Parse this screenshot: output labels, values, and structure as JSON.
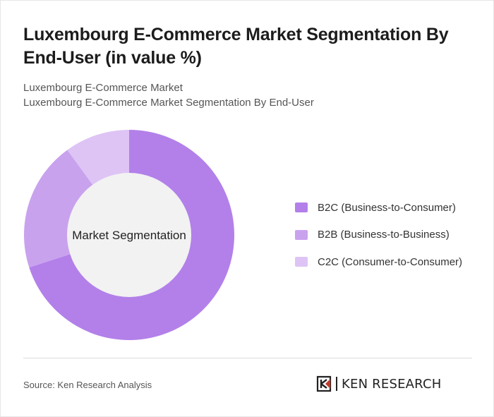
{
  "header": {
    "title": "Luxembourg E-Commerce Market Segmentation By End-User (in value %)",
    "subtitle_line1": "Luxembourg E-Commerce Market",
    "subtitle_line2": "Luxembourg E-Commerce Market Segmentation By End-User"
  },
  "chart_data": {
    "type": "pie",
    "style": "donut",
    "center_label": "Market Segmentation",
    "categories": [
      "B2C (Business-to-Consumer)",
      "B2B (Business-to-Business)",
      "C2C (Consumer-to-Consumer)"
    ],
    "values": [
      70,
      20,
      10
    ],
    "colors": [
      "#b380e9",
      "#c9a2ee",
      "#dec4f5"
    ],
    "legend_position": "right"
  },
  "footer": {
    "source": "Source: Ken Research Analysis",
    "logo_text": "KEN RESEARCH"
  }
}
